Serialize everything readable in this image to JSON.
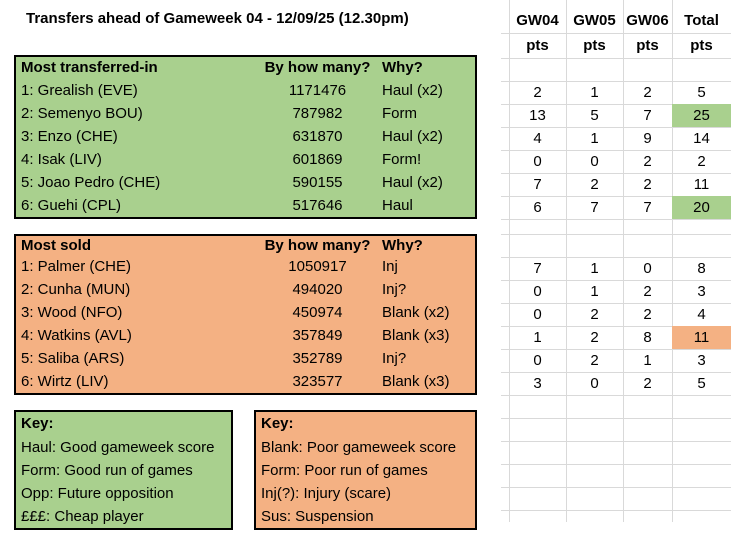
{
  "title": "Transfers ahead of Gameweek 04 - 12/09/25 (12.30pm)",
  "grid": {
    "columns": [
      {
        "label": "GW04",
        "sub": "pts"
      },
      {
        "label": "GW05",
        "sub": "pts"
      },
      {
        "label": "GW06",
        "sub": "pts"
      },
      {
        "label": "Total",
        "sub": "pts"
      }
    ]
  },
  "transferred_in": {
    "header": {
      "col1": "Most transferred-in",
      "col2": "By how many?",
      "col3": "Why?"
    },
    "rows": [
      {
        "player": "1: Grealish (EVE)",
        "count": "1171476",
        "why": "Haul (x2)",
        "pts": [
          "2",
          "1",
          "2",
          "5"
        ],
        "total_hl": false
      },
      {
        "player": "2: Semenyo BOU)",
        "count": "787982",
        "why": "Form",
        "pts": [
          "13",
          "5",
          "7",
          "25"
        ],
        "total_hl": true
      },
      {
        "player": "3: Enzo (CHE)",
        "count": "631870",
        "why": "Haul (x2)",
        "pts": [
          "4",
          "1",
          "9",
          "14"
        ],
        "total_hl": false
      },
      {
        "player": "4: Isak (LIV)",
        "count": "601869",
        "why": "Form!",
        "pts": [
          "0",
          "0",
          "2",
          "2"
        ],
        "total_hl": false
      },
      {
        "player": "5: Joao Pedro (CHE)",
        "count": "590155",
        "why": "Haul (x2)",
        "pts": [
          "7",
          "2",
          "2",
          "11"
        ],
        "total_hl": false
      },
      {
        "player": "6: Guehi (CPL)",
        "count": "517646",
        "why": "Haul",
        "pts": [
          "6",
          "7",
          "7",
          "20"
        ],
        "total_hl": true
      }
    ]
  },
  "sold": {
    "header": {
      "col1": "Most sold",
      "col2": "By how many?",
      "col3": "Why?"
    },
    "rows": [
      {
        "player": "1: Palmer (CHE)",
        "count": "1050917",
        "why": "Inj",
        "pts": [
          "7",
          "1",
          "0",
          "8"
        ],
        "total_hl": false
      },
      {
        "player": "2: Cunha (MUN)",
        "count": "494020",
        "why": "Inj?",
        "pts": [
          "0",
          "1",
          "2",
          "3"
        ],
        "total_hl": false
      },
      {
        "player": "3: Wood (NFO)",
        "count": "450974",
        "why": "Blank (x2)",
        "pts": [
          "0",
          "2",
          "2",
          "4"
        ],
        "total_hl": false
      },
      {
        "player": "4: Watkins (AVL)",
        "count": "357849",
        "why": "Blank (x3)",
        "pts": [
          "1",
          "2",
          "8",
          "11"
        ],
        "total_hl": true
      },
      {
        "player": "5: Saliba (ARS)",
        "count": "352789",
        "why": "Inj?",
        "pts": [
          "0",
          "2",
          "1",
          "3"
        ],
        "total_hl": false
      },
      {
        "player": "6: Wirtz (LIV)",
        "count": "323577",
        "why": "Blank (x3)",
        "pts": [
          "3",
          "0",
          "2",
          "5"
        ],
        "total_hl": false
      }
    ]
  },
  "key_green": {
    "title": "Key:",
    "lines": [
      "Haul: Good gameweek score",
      "Form: Good run of games",
      "Opp: Future opposition",
      "£££: Cheap player"
    ]
  },
  "key_orange": {
    "title": "Key:",
    "lines": [
      "Blank: Poor gameweek score",
      "Form: Poor run of games",
      "Inj(?): Injury (scare)",
      "Sus: Suspension"
    ]
  },
  "colors": {
    "green": "#a9d08e",
    "orange": "#f4b183",
    "gridline": "#d9d9d9"
  }
}
